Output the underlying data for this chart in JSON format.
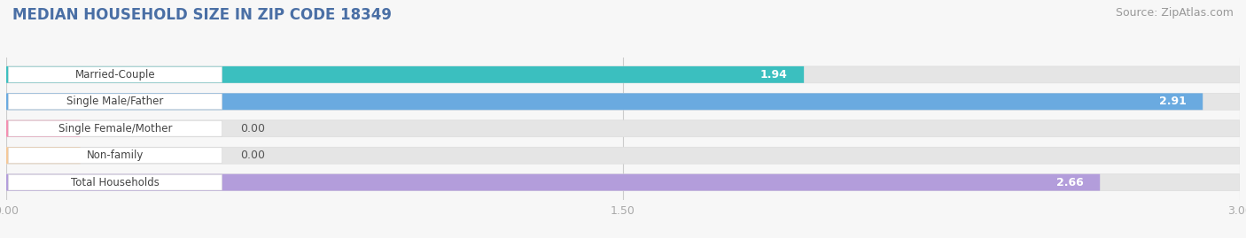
{
  "title": "MEDIAN HOUSEHOLD SIZE IN ZIP CODE 18349",
  "source": "Source: ZipAtlas.com",
  "categories": [
    "Married-Couple",
    "Single Male/Father",
    "Single Female/Mother",
    "Non-family",
    "Total Households"
  ],
  "values": [
    1.94,
    2.91,
    0.0,
    0.0,
    2.66
  ],
  "bar_colors": [
    "#3bbfbf",
    "#6aaae0",
    "#f48fb1",
    "#f5c898",
    "#b39ddb"
  ],
  "xlim": [
    0,
    3.0
  ],
  "xticks": [
    0.0,
    1.5,
    3.0
  ],
  "xtick_labels": [
    "0.00",
    "1.50",
    "3.00"
  ],
  "title_color": "#4a6fa5",
  "title_fontsize": 12,
  "source_fontsize": 9,
  "source_color": "#999999",
  "label_color": "#555555",
  "value_color": "#ffffff",
  "bar_height": 0.62,
  "background_color": "#f7f7f7",
  "bar_bg_color": "#e5e5e5",
  "label_bg_color": "#ffffff",
  "n_bars": 5
}
